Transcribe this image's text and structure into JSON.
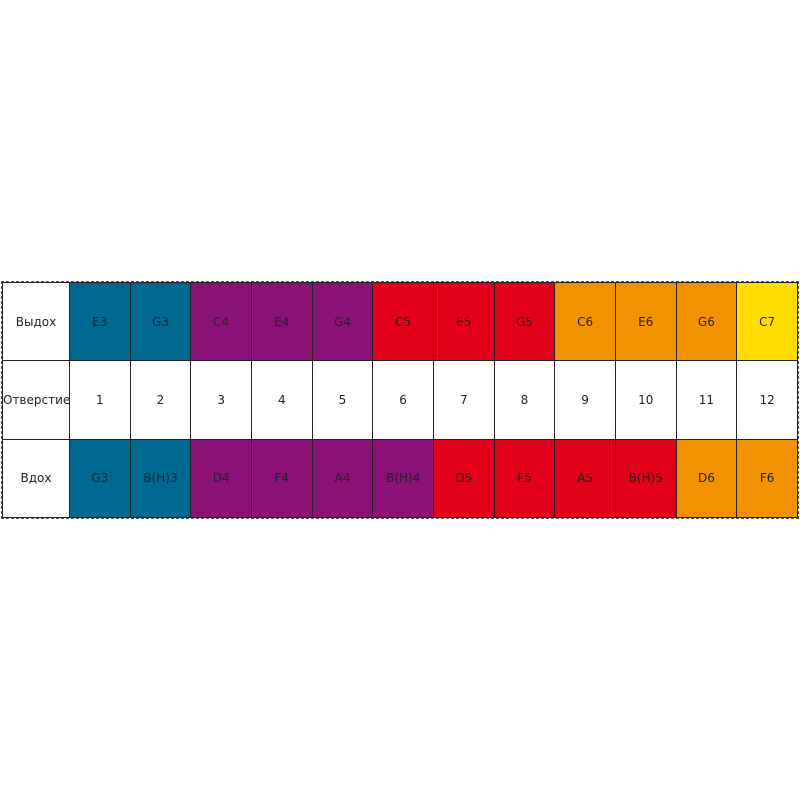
{
  "table": {
    "rows": [
      {
        "label": "Выдох",
        "cells": [
          {
            "text": "E3",
            "color": "#00698f"
          },
          {
            "text": "G3",
            "color": "#00698f"
          },
          {
            "text": "C4",
            "color": "#8a1176"
          },
          {
            "text": "E4",
            "color": "#8a1176"
          },
          {
            "text": "G4",
            "color": "#8a1176"
          },
          {
            "text": "C5",
            "color": "#e3001b"
          },
          {
            "text": "E5",
            "color": "#e3001b"
          },
          {
            "text": "G5",
            "color": "#e3001b"
          },
          {
            "text": "C6",
            "color": "#f39200"
          },
          {
            "text": "E6",
            "color": "#f39200"
          },
          {
            "text": "G6",
            "color": "#f39200"
          },
          {
            "text": "C7",
            "color": "#ffdd00"
          }
        ]
      },
      {
        "label": "Отверстие",
        "cells": [
          {
            "text": 1,
            "color": "#ffffff"
          },
          {
            "text": 2,
            "color": "#ffffff"
          },
          {
            "text": 3,
            "color": "#ffffff"
          },
          {
            "text": 4,
            "color": "#ffffff"
          },
          {
            "text": 5,
            "color": "#ffffff"
          },
          {
            "text": 6,
            "color": "#ffffff"
          },
          {
            "text": 7,
            "color": "#ffffff"
          },
          {
            "text": 8,
            "color": "#ffffff"
          },
          {
            "text": 9,
            "color": "#ffffff"
          },
          {
            "text": 10,
            "color": "#ffffff"
          },
          {
            "text": 11,
            "color": "#ffffff"
          },
          {
            "text": 12,
            "color": "#ffffff"
          }
        ]
      },
      {
        "label": "Вдох",
        "cells": [
          {
            "text": "G3",
            "color": "#00698f"
          },
          {
            "text": "B(H)3",
            "color": "#00698f"
          },
          {
            "text": "D4",
            "color": "#8a1176"
          },
          {
            "text": "F4",
            "color": "#8a1176"
          },
          {
            "text": "A4",
            "color": "#8a1176"
          },
          {
            "text": "B(H)4",
            "color": "#8a1176"
          },
          {
            "text": "D5",
            "color": "#e3001b"
          },
          {
            "text": "F5",
            "color": "#e3001b"
          },
          {
            "text": "A5",
            "color": "#e3001b"
          },
          {
            "text": "B(H)5",
            "color": "#e3001b"
          },
          {
            "text": "D6",
            "color": "#f39200"
          },
          {
            "text": "F6",
            "color": "#f39200"
          }
        ]
      }
    ]
  }
}
